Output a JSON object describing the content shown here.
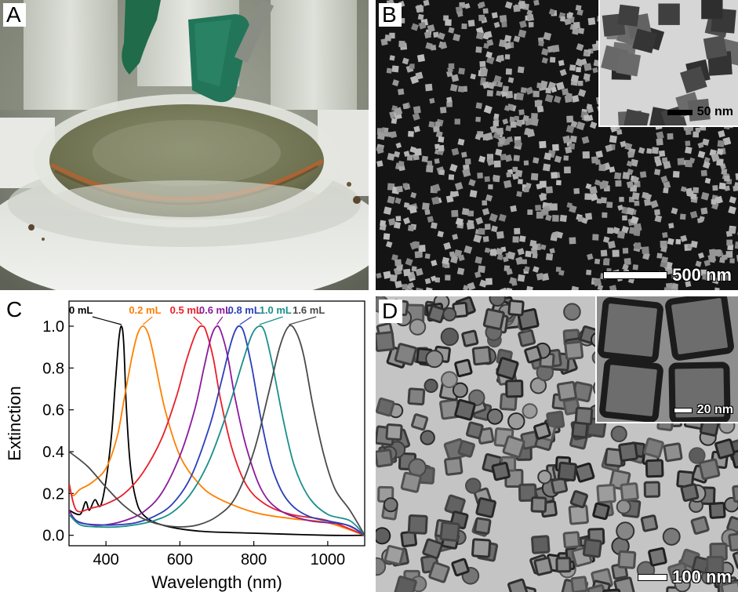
{
  "panels": {
    "a": {
      "letter": "A"
    },
    "b": {
      "letter": "B",
      "scale_main": "500 nm",
      "scale_inset": "50 nm"
    },
    "c": {
      "letter": "C"
    },
    "d": {
      "letter": "D",
      "scale_main": "100 nm",
      "scale_inset": "20 nm"
    }
  },
  "chart_data": {
    "type": "line",
    "xlabel": "Wavelength (nm)",
    "ylabel": "Extinction",
    "xlim": [
      300,
      1100
    ],
    "ylim": [
      -0.05,
      1.12
    ],
    "xticks": [
      400,
      600,
      800,
      1000
    ],
    "yticks": [
      0.0,
      0.2,
      0.4,
      0.6,
      0.8,
      1.0
    ],
    "grid": false,
    "legend": "labels placed above peaks",
    "series": [
      {
        "name": "0 mL",
        "color": "#000000",
        "label_at": [
          300,
          1.06
        ],
        "x": [
          300,
          330,
          345,
          355,
          370,
          385,
          400,
          415,
          425,
          435,
          442,
          448,
          455,
          465,
          480,
          500,
          550,
          650,
          800,
          1000,
          1100
        ],
        "y": [
          0.12,
          0.1,
          0.16,
          0.12,
          0.17,
          0.14,
          0.26,
          0.48,
          0.72,
          0.94,
          1.0,
          0.92,
          0.62,
          0.35,
          0.18,
          0.1,
          0.05,
          0.02,
          0.01,
          0.0,
          0.0
        ]
      },
      {
        "name": "0.2 mL",
        "color": "#ff7f00",
        "label_at": [
          462,
          1.06
        ],
        "x": [
          300,
          310,
          330,
          360,
          400,
          430,
          450,
          470,
          485,
          500,
          515,
          530,
          560,
          600,
          650,
          700,
          800,
          900,
          1000,
          1100
        ],
        "y": [
          0.24,
          0.19,
          0.22,
          0.25,
          0.32,
          0.47,
          0.66,
          0.85,
          0.96,
          1.0,
          0.96,
          0.85,
          0.6,
          0.38,
          0.25,
          0.18,
          0.11,
          0.08,
          0.06,
          0.0
        ]
      },
      {
        "name": "0.5 mL",
        "color": "#e8202a",
        "label_at": [
          573,
          1.06
        ],
        "x": [
          300,
          320,
          360,
          400,
          450,
          500,
          550,
          590,
          615,
          635,
          650,
          660,
          670,
          690,
          710,
          740,
          780,
          830,
          900,
          1000,
          1100
        ],
        "y": [
          0.25,
          0.12,
          0.13,
          0.15,
          0.2,
          0.3,
          0.46,
          0.66,
          0.82,
          0.93,
          0.99,
          1.0,
          0.98,
          0.85,
          0.65,
          0.42,
          0.24,
          0.15,
          0.1,
          0.07,
          0.0
        ]
      },
      {
        "name": "0.6 mL",
        "color": "#8b1a9c",
        "label_at": [
          652,
          1.06
        ],
        "x": [
          300,
          320,
          360,
          400,
          450,
          500,
          550,
          600,
          640,
          665,
          685,
          700,
          712,
          730,
          750,
          780,
          820,
          870,
          950,
          1050,
          1100
        ],
        "y": [
          0.12,
          0.07,
          0.05,
          0.05,
          0.07,
          0.11,
          0.2,
          0.38,
          0.6,
          0.8,
          0.95,
          1.0,
          0.97,
          0.85,
          0.65,
          0.42,
          0.22,
          0.12,
          0.07,
          0.05,
          0.0
        ]
      },
      {
        "name": "0.8 mL",
        "color": "#2b3fb8",
        "label_at": [
          730,
          1.06
        ],
        "x": [
          300,
          330,
          380,
          430,
          480,
          530,
          580,
          630,
          680,
          710,
          735,
          750,
          762,
          775,
          795,
          820,
          850,
          890,
          950,
          1050,
          1100
        ],
        "y": [
          0.1,
          0.06,
          0.05,
          0.05,
          0.06,
          0.09,
          0.15,
          0.28,
          0.52,
          0.72,
          0.9,
          0.98,
          1.0,
          0.96,
          0.8,
          0.55,
          0.32,
          0.17,
          0.09,
          0.05,
          0.0
        ]
      },
      {
        "name": "1.0 mL",
        "color": "#1a8f8a",
        "label_at": [
          815,
          1.06
        ],
        "x": [
          300,
          330,
          380,
          430,
          480,
          530,
          580,
          630,
          680,
          730,
          770,
          795,
          815,
          830,
          850,
          880,
          910,
          950,
          1000,
          1060,
          1100
        ],
        "y": [
          0.1,
          0.05,
          0.04,
          0.04,
          0.05,
          0.07,
          0.11,
          0.2,
          0.36,
          0.6,
          0.83,
          0.96,
          1.0,
          0.97,
          0.82,
          0.55,
          0.33,
          0.18,
          0.1,
          0.07,
          0.0
        ]
      },
      {
        "name": "1.6 mL",
        "color": "#4a4a4a",
        "label_at": [
          905,
          1.06
        ],
        "x": [
          300,
          350,
          400,
          450,
          500,
          550,
          600,
          650,
          700,
          750,
          800,
          840,
          870,
          895,
          915,
          935,
          960,
          990,
          1020,
          1060,
          1100
        ],
        "y": [
          0.4,
          0.33,
          0.23,
          0.14,
          0.08,
          0.05,
          0.04,
          0.05,
          0.09,
          0.18,
          0.4,
          0.68,
          0.9,
          1.0,
          0.97,
          0.86,
          0.62,
          0.38,
          0.22,
          0.12,
          0.0
        ]
      }
    ]
  }
}
